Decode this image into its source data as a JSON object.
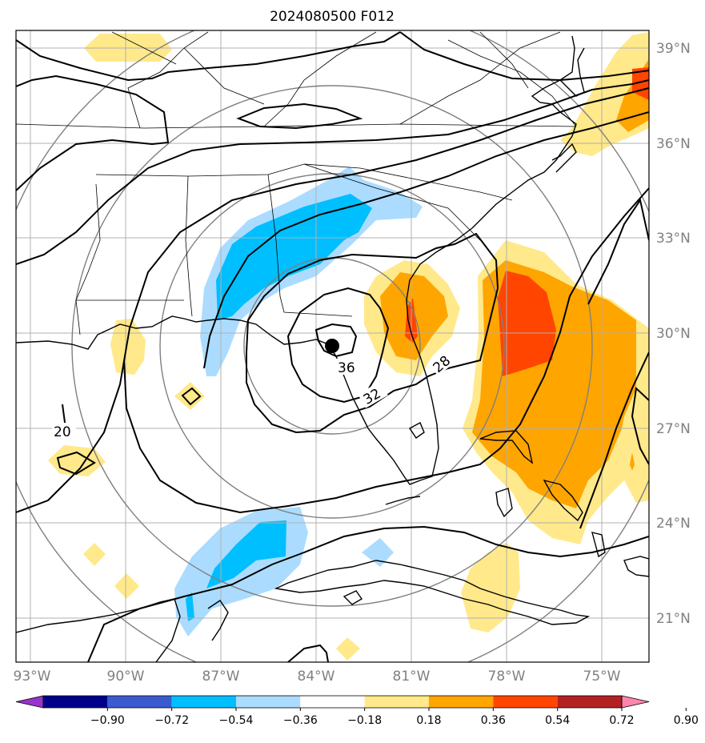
{
  "title": "2024080500 F012",
  "longitude_labels": [
    "93°W",
    "90°W",
    "87°W",
    "84°W",
    "81°W",
    "78°W",
    "75°W"
  ],
  "latitude_labels": [
    "39°N",
    "36°N",
    "33°N",
    "30°N",
    "27°N",
    "24°N",
    "21°N"
  ],
  "contour_labels": [
    "36",
    "32",
    "28",
    "20"
  ],
  "colorbar": {
    "tick_labels": [
      "−0.90",
      "−0.72",
      "−0.54",
      "−0.36",
      "−0.18",
      "0.18",
      "0.36",
      "0.54",
      "0.72",
      "0.90"
    ],
    "colors": [
      "#9933cc",
      "#00008b",
      "#3a5bd0",
      "#00bfff",
      "#abdcff",
      "#ffffff",
      "#ffe98a",
      "#ffa500",
      "#ff4500",
      "#b22222",
      "#ff85b0"
    ]
  },
  "colors": {
    "text_gray": "#808080",
    "grid": "#b0b0b0",
    "range_rings": "#808080",
    "contour": "#000000"
  },
  "storm_center_marker": "filled-black-circle"
}
